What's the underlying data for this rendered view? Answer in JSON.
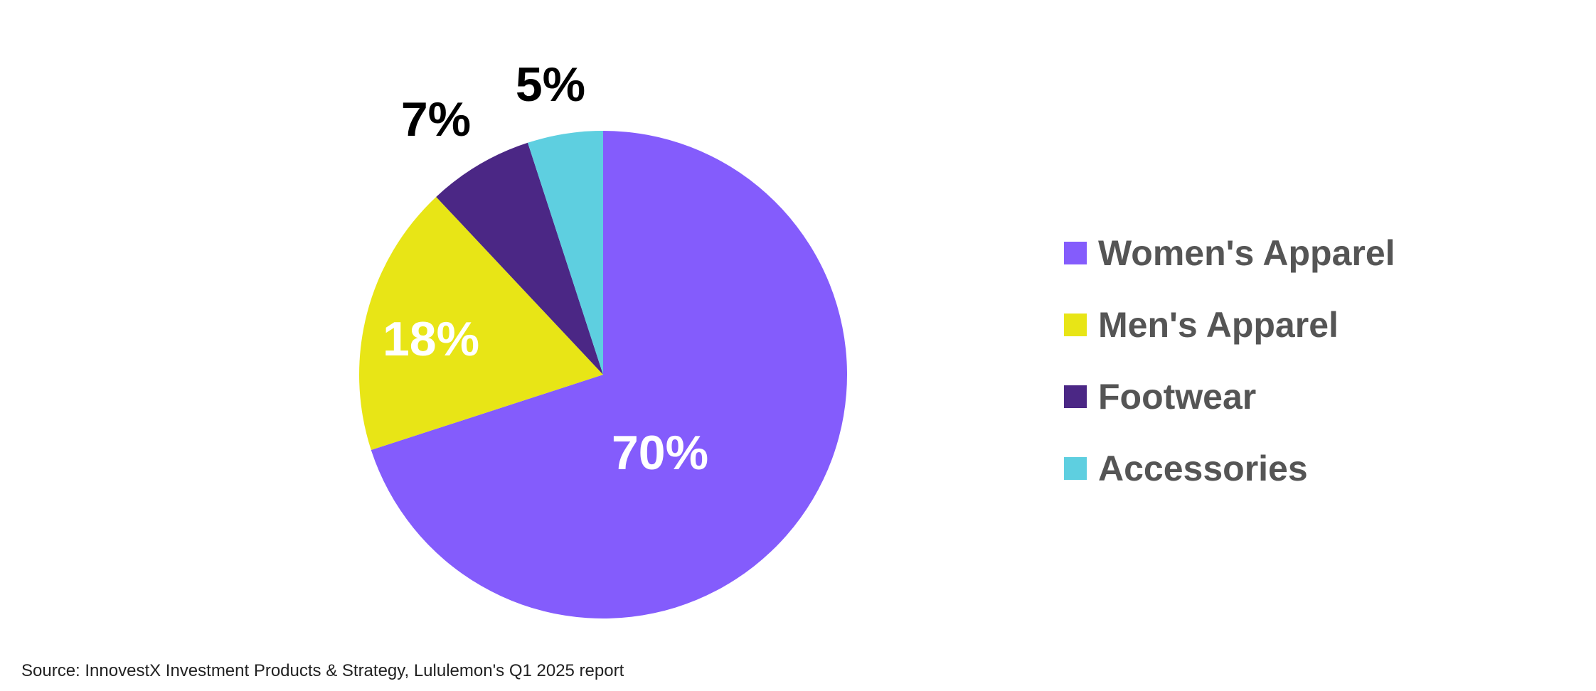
{
  "chart_data": {
    "type": "pie",
    "title": "",
    "categories": [
      "Women's Apparel",
      "Men's Apparel",
      "Footwear",
      "Accessories"
    ],
    "values": [
      70,
      18,
      7,
      5
    ],
    "labels": [
      "70%",
      "18%",
      "7%",
      "5%"
    ],
    "colors": [
      "#845cfc",
      "#e8e516",
      "#4b2785",
      "#5ecfe0"
    ],
    "label_colors": [
      "#ffffff",
      "#ffffff",
      "#000000",
      "#000000"
    ],
    "start_angle": "12 o'clock",
    "direction": "clockwise",
    "legend_position": "right"
  },
  "legend": {
    "items": [
      {
        "label": "Women's Apparel",
        "color": "#845cfc"
      },
      {
        "label": "Men's Apparel",
        "color": "#e8e516"
      },
      {
        "label": "Footwear",
        "color": "#4b2785"
      },
      {
        "label": "Accessories",
        "color": "#5ecfe0"
      }
    ]
  },
  "source": "Source: InnovestX Investment Products & Strategy, Lululemon's Q1 2025 report"
}
